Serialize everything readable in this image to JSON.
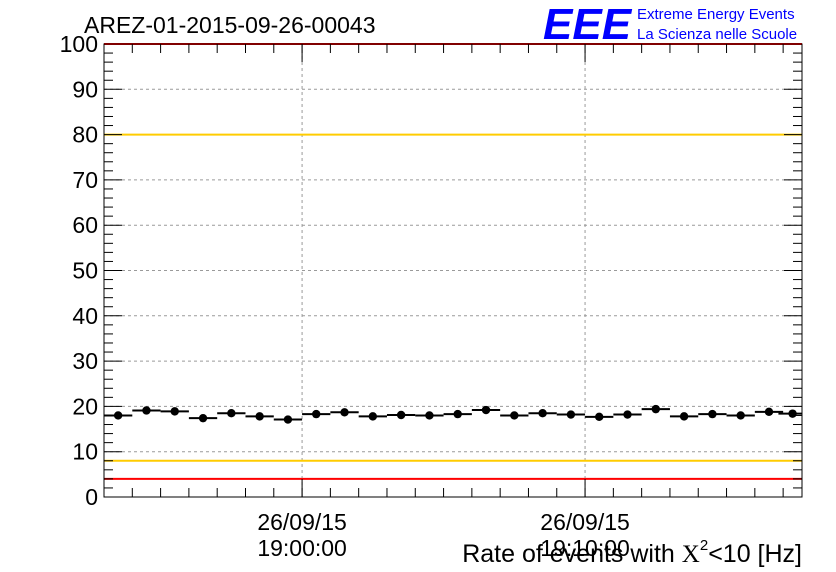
{
  "header": {
    "run_title": "AREZ-01-2015-09-26-00043",
    "logo_text": "EEE",
    "logo_line1": "Extreme Energy Events",
    "logo_line2": "La Scienza nelle Scuole"
  },
  "chart_data": {
    "type": "scatter",
    "title": "AREZ-01-2015-09-26-00043",
    "xlabel_prefix": "Rate of events with ",
    "xlabel_chi": "X",
    "xlabel_sup": "2",
    "xlabel_suffix": "<10 [Hz]",
    "ylim": [
      0,
      100
    ],
    "y_ticks": [
      "0",
      "10",
      "20",
      "30",
      "40",
      "50",
      "60",
      "70",
      "80",
      "90",
      "100"
    ],
    "x_ticks": [
      {
        "date": "26/09/15",
        "time": "19:00:00"
      },
      {
        "date": "26/09/15",
        "time": "19:10:00"
      }
    ],
    "x_start": "18:53:00",
    "x_end": "19:17:40",
    "bin_width_seconds": 60,
    "grid": true,
    "series": [
      {
        "x": [
          "18:53:30",
          "18:54:30",
          "18:55:30",
          "18:56:30",
          "18:57:30",
          "18:58:30",
          "18:59:30",
          "19:00:30",
          "19:01:30",
          "19:02:30",
          "19:03:30",
          "19:04:30",
          "19:05:30",
          "19:06:30",
          "19:07:30",
          "19:08:30",
          "19:09:30",
          "19:10:30",
          "19:11:30",
          "19:12:30",
          "19:13:30",
          "19:14:30",
          "19:15:30",
          "19:16:30",
          "19:17:20"
        ],
        "y": [
          18.0,
          19.1,
          18.9,
          17.4,
          18.5,
          17.8,
          17.1,
          18.3,
          18.7,
          17.8,
          18.1,
          18.0,
          18.3,
          19.2,
          18.0,
          18.5,
          18.2,
          17.7,
          18.2,
          19.4,
          17.8,
          18.3,
          18.0,
          18.8,
          18.4
        ]
      }
    ],
    "reference_lines": [
      {
        "y": 100,
        "color": "#ff0000"
      },
      {
        "y": 80,
        "color": "#ffcc00"
      },
      {
        "y": 8,
        "color": "#ffcc00"
      },
      {
        "y": 4,
        "color": "#ff0000"
      }
    ],
    "colors": {
      "marker": "#000000",
      "logo": "#0000ff",
      "grid": "#9a9a9a"
    }
  }
}
